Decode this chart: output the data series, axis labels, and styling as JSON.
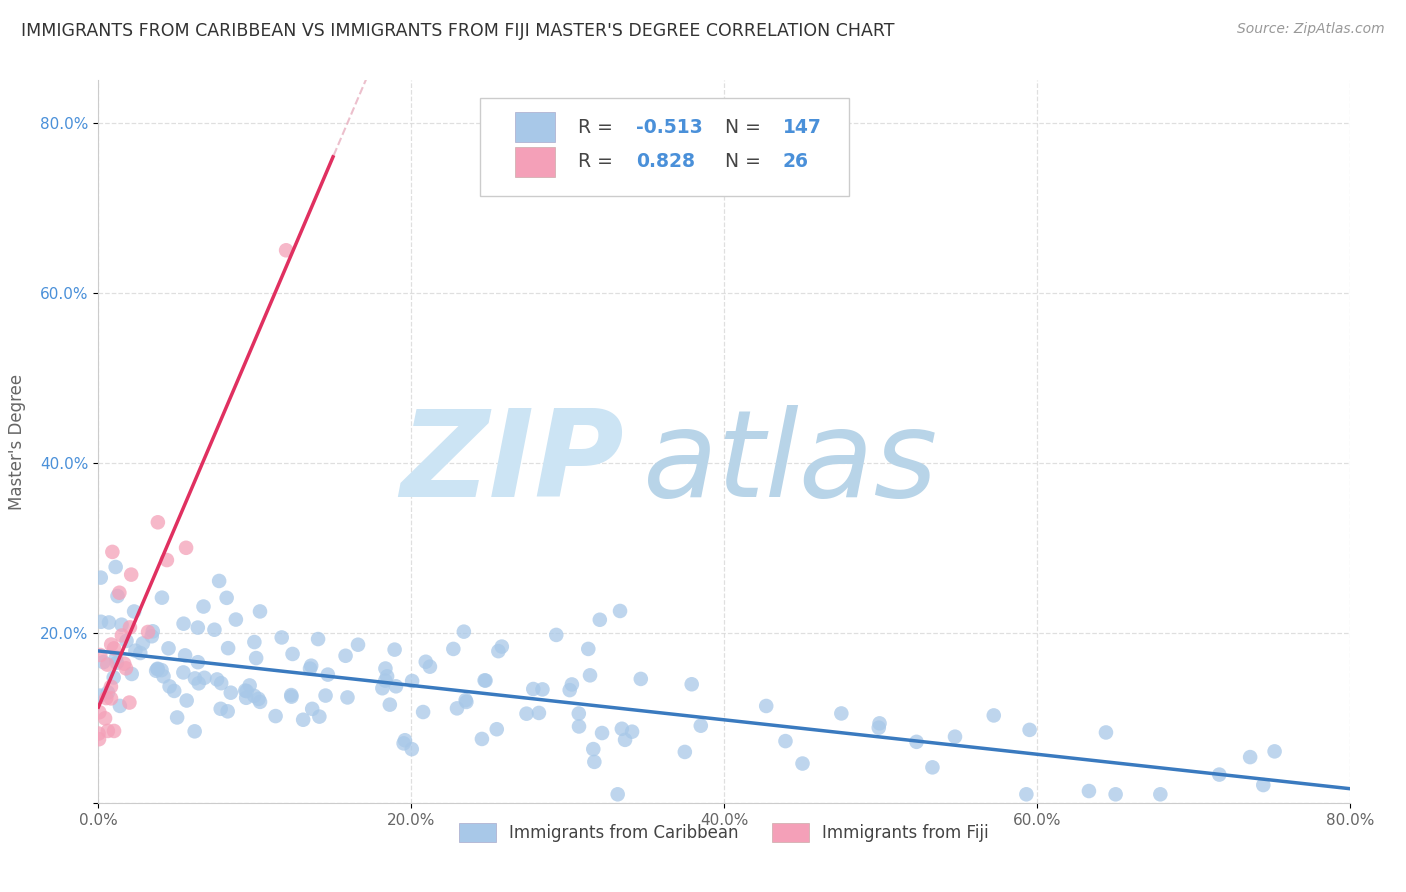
{
  "title": "IMMIGRANTS FROM CARIBBEAN VS IMMIGRANTS FROM FIJI MASTER'S DEGREE CORRELATION CHART",
  "source": "Source: ZipAtlas.com",
  "ylabel": "Master's Degree",
  "xlim": [
    0,
    0.8
  ],
  "ylim": [
    0,
    0.85
  ],
  "xticks": [
    0.0,
    0.2,
    0.4,
    0.6,
    0.8
  ],
  "yticks": [
    0.0,
    0.2,
    0.4,
    0.6,
    0.8
  ],
  "xticklabels": [
    "0.0%",
    "20.0%",
    "40.0%",
    "60.0%",
    "80.0%"
  ],
  "yticklabels": [
    "",
    "20.0%",
    "40.0%",
    "60.0%",
    "80.0%"
  ],
  "caribbean_color": "#a8c8e8",
  "fiji_color": "#f4a0b8",
  "caribbean_line_color": "#3a7abf",
  "fiji_line_color": "#e03060",
  "fiji_dash_color": "#e8b0c0",
  "R_caribbean": -0.513,
  "N_caribbean": 147,
  "R_fiji": 0.828,
  "N_fiji": 26,
  "watermark_zip": "ZIP",
  "watermark_atlas": "atlas",
  "watermark_color_zip": "#cce4f4",
  "watermark_color_atlas": "#b8d4e8",
  "legend_entries": [
    "Immigrants from Caribbean",
    "Immigrants from Fiji"
  ],
  "background_color": "#ffffff",
  "grid_color": "#d8d8d8",
  "title_color": "#333333",
  "source_color": "#999999",
  "tick_color_y": "#4a90d9",
  "tick_color_x": "#666666",
  "label_color": "#666666"
}
